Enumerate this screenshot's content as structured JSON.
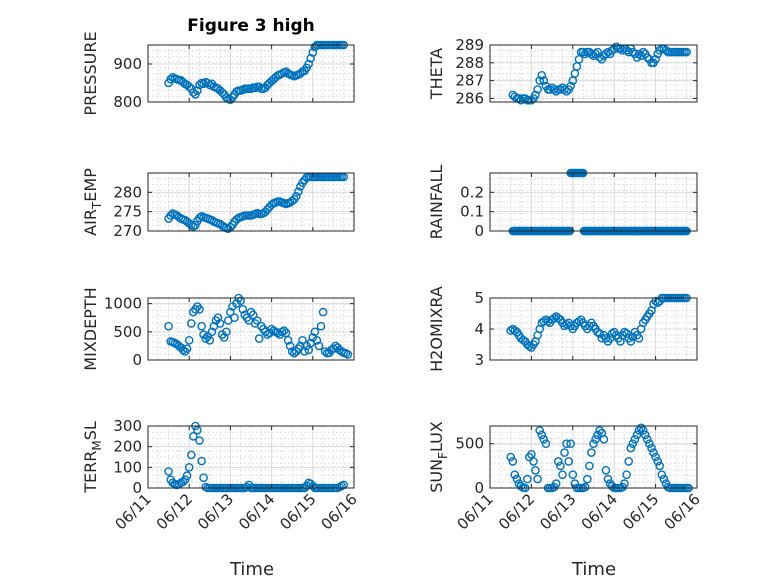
{
  "colors": {
    "marker": "#0072BD",
    "axes": "#262626",
    "background": "#ffffff"
  },
  "figure": {
    "title": "Figure 3 high"
  },
  "chart_data": [
    {
      "type": "scatter",
      "ylabel": "PRESSURE",
      "title": "Figure 3 high",
      "xlim": [
        0,
        5
      ],
      "ylim": [
        800,
        950
      ],
      "yticks": [
        800,
        900
      ],
      "ytick_labels": [
        "800",
        "900"
      ],
      "x": [
        0.5,
        0.55,
        0.6,
        0.65,
        0.7,
        0.75,
        0.8,
        0.85,
        0.9,
        0.95,
        1.0,
        1.05,
        1.1,
        1.15,
        1.2,
        1.25,
        1.3,
        1.35,
        1.4,
        1.45,
        1.5,
        1.55,
        1.6,
        1.65,
        1.7,
        1.75,
        1.8,
        1.85,
        1.9,
        1.95,
        2.0,
        2.05,
        2.1,
        2.15,
        2.2,
        2.25,
        2.3,
        2.35,
        2.4,
        2.45,
        2.5,
        2.55,
        2.6,
        2.65,
        2.7,
        2.75,
        2.8,
        2.85,
        2.9,
        2.95,
        3.0,
        3.05,
        3.1,
        3.15,
        3.2,
        3.25,
        3.3,
        3.35,
        3.4,
        3.45,
        3.5,
        3.55,
        3.6,
        3.65,
        3.7,
        3.75,
        3.8,
        3.85,
        3.9,
        3.95,
        4.0,
        4.05,
        4.1,
        4.15,
        4.2,
        4.25,
        4.3,
        4.35,
        4.4,
        4.45,
        4.5,
        4.55,
        4.6,
        4.65,
        4.7,
        4.75
      ],
      "y": [
        850,
        860,
        865,
        862,
        860,
        858,
        857,
        852,
        848,
        845,
        840,
        835,
        825,
        820,
        830,
        845,
        850,
        848,
        852,
        850,
        845,
        848,
        840,
        838,
        835,
        830,
        825,
        820,
        812,
        808,
        806,
        812,
        820,
        828,
        830,
        830,
        832,
        835,
        835,
        835,
        835,
        838,
        837,
        840,
        840,
        835,
        835,
        838,
        845,
        850,
        855,
        860,
        865,
        870,
        872,
        875,
        878,
        880,
        875,
        872,
        870,
        868,
        870,
        872,
        875,
        880,
        882,
        890,
        900,
        915,
        930,
        945,
        955,
        955,
        955,
        955,
        955,
        955,
        955,
        955,
        955,
        955,
        955,
        955,
        955,
        955
      ]
    },
    {
      "type": "scatter",
      "ylabel": "THETA",
      "xlim": [
        0,
        5
      ],
      "ylim": [
        285.8,
        289
      ],
      "yticks": [
        286,
        287,
        288,
        289
      ],
      "ytick_labels": [
        "286",
        "287",
        "288",
        "289"
      ],
      "x": [
        0.55,
        0.6,
        0.65,
        0.7,
        0.75,
        0.8,
        0.85,
        0.9,
        0.95,
        1.0,
        1.05,
        1.1,
        1.15,
        1.2,
        1.25,
        1.3,
        1.35,
        1.4,
        1.45,
        1.5,
        1.55,
        1.6,
        1.65,
        1.7,
        1.75,
        1.8,
        1.85,
        1.9,
        1.95,
        2.0,
        2.05,
        2.1,
        2.15,
        2.2,
        2.25,
        2.3,
        2.35,
        2.4,
        2.45,
        2.5,
        2.55,
        2.6,
        2.65,
        2.7,
        2.75,
        2.8,
        2.85,
        2.9,
        2.95,
        3.0,
        3.05,
        3.1,
        3.15,
        3.2,
        3.25,
        3.3,
        3.35,
        3.4,
        3.45,
        3.5,
        3.55,
        3.6,
        3.65,
        3.7,
        3.75,
        3.8,
        3.85,
        3.9,
        3.95,
        4.0,
        4.05,
        4.1,
        4.15,
        4.2,
        4.25,
        4.3,
        4.35,
        4.4,
        4.45,
        4.5,
        4.55,
        4.6,
        4.65,
        4.7,
        4.75
      ],
      "y": [
        286.2,
        286.1,
        286.0,
        286.0,
        285.9,
        286.0,
        286.0,
        285.9,
        285.9,
        285.9,
        286.0,
        286.2,
        286.5,
        287.0,
        287.3,
        287.0,
        286.7,
        286.5,
        286.5,
        286.6,
        286.5,
        286.4,
        286.5,
        286.5,
        286.6,
        286.5,
        286.4,
        286.5,
        286.7,
        287.0,
        287.4,
        287.8,
        288.2,
        288.6,
        288.6,
        288.5,
        288.6,
        288.6,
        288.5,
        288.4,
        288.5,
        288.6,
        288.3,
        288.2,
        288.4,
        288.5,
        288.6,
        288.5,
        288.7,
        288.8,
        288.9,
        288.8,
        288.8,
        288.7,
        288.8,
        288.7,
        288.6,
        288.8,
        288.6,
        288.5,
        288.3,
        288.5,
        288.4,
        288.6,
        288.5,
        288.3,
        288.2,
        288.0,
        288.0,
        288.2,
        288.5,
        288.7,
        288.8,
        288.8,
        288.7,
        288.6,
        288.6,
        288.6,
        288.6,
        288.6,
        288.6,
        288.6,
        288.6,
        288.6,
        288.6
      ]
    },
    {
      "type": "scatter",
      "ylabel": "AIR_TEMP",
      "ylabel_parts": [
        "AIR",
        "T",
        "EMP"
      ],
      "xlim": [
        0,
        5
      ],
      "ylim": [
        270,
        285
      ],
      "yticks": [
        270,
        275,
        280
      ],
      "ytick_labels": [
        "270",
        "275",
        "280"
      ],
      "x": [
        0.5,
        0.55,
        0.6,
        0.65,
        0.7,
        0.75,
        0.8,
        0.85,
        0.9,
        0.95,
        1.0,
        1.05,
        1.1,
        1.15,
        1.2,
        1.25,
        1.3,
        1.35,
        1.4,
        1.45,
        1.5,
        1.55,
        1.6,
        1.65,
        1.7,
        1.75,
        1.8,
        1.85,
        1.9,
        1.95,
        2.0,
        2.05,
        2.1,
        2.15,
        2.2,
        2.25,
        2.3,
        2.35,
        2.4,
        2.45,
        2.5,
        2.55,
        2.6,
        2.65,
        2.7,
        2.75,
        2.8,
        2.85,
        2.9,
        2.95,
        3.0,
        3.05,
        3.1,
        3.15,
        3.2,
        3.25,
        3.3,
        3.35,
        3.4,
        3.45,
        3.5,
        3.55,
        3.6,
        3.65,
        3.7,
        3.75,
        3.8,
        3.85,
        3.9,
        3.95,
        4.0,
        4.05,
        4.1,
        4.15,
        4.2,
        4.25,
        4.3,
        4.35,
        4.4,
        4.45,
        4.5,
        4.55,
        4.6,
        4.65,
        4.7,
        4.75
      ],
      "y": [
        273.2,
        274.0,
        274.5,
        274.3,
        274.0,
        273.6,
        273.2,
        273.0,
        272.8,
        272.4,
        272.0,
        271.6,
        271.2,
        271.5,
        272.6,
        273.4,
        273.8,
        273.6,
        273.4,
        273.2,
        273.0,
        272.8,
        272.4,
        272.2,
        272.0,
        271.8,
        271.4,
        271.0,
        270.8,
        270.6,
        271.0,
        271.6,
        272.4,
        273.0,
        273.4,
        273.6,
        273.8,
        274.0,
        274.0,
        274.0,
        274.0,
        274.2,
        274.4,
        274.6,
        274.4,
        274.4,
        274.6,
        275.0,
        275.6,
        276.2,
        276.8,
        277.2,
        277.4,
        277.6,
        277.6,
        277.4,
        277.2,
        277.0,
        277.2,
        277.4,
        277.8,
        278.2,
        279.0,
        280.2,
        281.5,
        282.5,
        283.2,
        283.8,
        284.0,
        284.0,
        284.0,
        284.0,
        284.0,
        284.0,
        284.0,
        284.0,
        284.0,
        284.0,
        284.0,
        284.0,
        284.0,
        284.0,
        284.0,
        284.0,
        284.0,
        284.0
      ]
    },
    {
      "type": "scatter",
      "ylabel": "RAINFALL",
      "xlim": [
        0,
        5
      ],
      "ylim": [
        0,
        0.3
      ],
      "yticks": [
        0,
        0.1,
        0.2
      ],
      "ytick_labels": [
        "0",
        "0.1",
        "0.2"
      ],
      "zero_range": [
        0.55,
        4.75
      ],
      "zero_step": 0.02,
      "rain_x": [
        1.95,
        1.98,
        2.01,
        2.04,
        2.07,
        2.1,
        2.13,
        2.16,
        2.19,
        2.22,
        2.25
      ],
      "rain_y": 0.3,
      "x_min_nonzero": 1.95
    },
    {
      "type": "scatter",
      "ylabel": "MIXDEPTH",
      "xlim": [
        0,
        5
      ],
      "ylim": [
        0,
        1100
      ],
      "yticks": [
        0,
        500,
        1000
      ],
      "ytick_labels": [
        "0",
        "500",
        "1000"
      ],
      "x": [
        0.5,
        0.55,
        0.6,
        0.65,
        0.7,
        0.75,
        0.8,
        0.85,
        0.9,
        0.95,
        1.0,
        1.05,
        1.1,
        1.15,
        1.2,
        1.25,
        1.3,
        1.35,
        1.4,
        1.45,
        1.5,
        1.55,
        1.6,
        1.65,
        1.7,
        1.75,
        1.8,
        1.85,
        1.9,
        1.95,
        2.0,
        2.05,
        2.1,
        2.15,
        2.2,
        2.25,
        2.3,
        2.35,
        2.4,
        2.45,
        2.5,
        2.55,
        2.6,
        2.65,
        2.7,
        2.75,
        2.8,
        2.85,
        2.9,
        2.95,
        3.0,
        3.05,
        3.1,
        3.15,
        3.2,
        3.25,
        3.3,
        3.35,
        3.4,
        3.45,
        3.5,
        3.55,
        3.6,
        3.65,
        3.7,
        3.75,
        3.8,
        3.85,
        3.9,
        3.95,
        4.0,
        4.05,
        4.1,
        4.15,
        4.2,
        4.25,
        4.3,
        4.35,
        4.4,
        4.45,
        4.5,
        4.55,
        4.6,
        4.65,
        4.7,
        4.75,
        4.8,
        4.85
      ],
      "y": [
        600,
        330,
        320,
        300,
        280,
        250,
        220,
        180,
        150,
        200,
        350,
        650,
        850,
        900,
        950,
        900,
        600,
        450,
        380,
        420,
        350,
        500,
        600,
        700,
        750,
        650,
        450,
        400,
        500,
        700,
        850,
        950,
        750,
        1000,
        1150,
        1050,
        900,
        800,
        750,
        700,
        850,
        800,
        650,
        700,
        380,
        600,
        550,
        500,
        450,
        480,
        550,
        520,
        500,
        480,
        450,
        500,
        520,
        480,
        350,
        250,
        150,
        120,
        150,
        200,
        250,
        350,
        150,
        250,
        180,
        300,
        400,
        500,
        350,
        250,
        600,
        850,
        150,
        120,
        130,
        180,
        200,
        250,
        220,
        180,
        150,
        130,
        120,
        100
      ]
    },
    {
      "type": "scatter",
      "ylabel": "H2OMIXRA",
      "xlim": [
        0,
        5
      ],
      "ylim": [
        3,
        5
      ],
      "yticks": [
        3,
        4,
        5
      ],
      "ytick_labels": [
        "3",
        "4",
        "5"
      ],
      "x": [
        0.5,
        0.55,
        0.6,
        0.65,
        0.7,
        0.75,
        0.8,
        0.85,
        0.9,
        0.95,
        1.0,
        1.05,
        1.1,
        1.15,
        1.2,
        1.25,
        1.3,
        1.35,
        1.4,
        1.45,
        1.5,
        1.55,
        1.6,
        1.65,
        1.7,
        1.75,
        1.8,
        1.85,
        1.9,
        1.95,
        2.0,
        2.05,
        2.1,
        2.15,
        2.2,
        2.25,
        2.3,
        2.35,
        2.4,
        2.45,
        2.5,
        2.55,
        2.6,
        2.65,
        2.7,
        2.75,
        2.8,
        2.85,
        2.9,
        2.95,
        3.0,
        3.05,
        3.1,
        3.15,
        3.2,
        3.25,
        3.3,
        3.35,
        3.4,
        3.45,
        3.5,
        3.55,
        3.6,
        3.65,
        3.7,
        3.75,
        3.8,
        3.85,
        3.9,
        3.95,
        4.0,
        4.05,
        4.1,
        4.15,
        4.2,
        4.25,
        4.3,
        4.35,
        4.4,
        4.45,
        4.5,
        4.55,
        4.6,
        4.65,
        4.7,
        4.75
      ],
      "y": [
        3.95,
        4.0,
        3.95,
        3.9,
        3.8,
        3.7,
        3.65,
        3.6,
        3.5,
        3.45,
        3.4,
        3.5,
        3.6,
        3.8,
        4.0,
        4.2,
        4.25,
        4.3,
        4.25,
        4.2,
        4.3,
        4.35,
        4.4,
        4.35,
        4.3,
        4.2,
        4.1,
        4.15,
        4.2,
        4.1,
        4.0,
        4.1,
        4.2,
        4.25,
        4.3,
        4.2,
        4.1,
        4.0,
        4.1,
        4.2,
        4.1,
        4.0,
        3.9,
        3.85,
        3.7,
        3.8,
        3.7,
        3.6,
        3.7,
        3.85,
        3.9,
        3.8,
        3.7,
        3.6,
        3.8,
        3.9,
        3.85,
        3.7,
        3.6,
        3.75,
        3.9,
        3.8,
        3.7,
        4.0,
        4.2,
        4.3,
        4.4,
        4.5,
        4.6,
        4.8,
        4.9,
        4.85,
        4.9,
        5.0,
        5.0,
        5.0,
        5.0,
        5.0,
        5.0,
        5.0,
        5.0,
        5.0,
        5.0,
        5.0,
        5.0,
        5.0
      ]
    },
    {
      "type": "scatter",
      "ylabel": "TERR_MSL",
      "ylabel_parts": [
        "TERR",
        "M",
        "SL"
      ],
      "xlim": [
        0,
        5
      ],
      "ylim": [
        0,
        300
      ],
      "yticks": [
        0,
        100,
        200,
        300
      ],
      "ytick_labels": [
        "0",
        "100",
        "200",
        "300"
      ],
      "x": [
        0.5,
        0.55,
        0.6,
        0.65,
        0.7,
        0.75,
        0.8,
        0.85,
        0.9,
        0.95,
        1.0,
        1.05,
        1.1,
        1.15,
        1.2,
        1.25,
        1.3,
        1.35,
        1.4,
        1.45,
        1.5,
        1.55,
        1.6,
        1.65,
        1.7,
        1.75,
        1.8,
        1.85,
        1.9,
        1.95,
        2.0,
        2.05,
        2.1,
        2.15,
        2.2,
        2.25,
        2.3,
        2.35,
        2.4,
        2.45,
        2.5,
        2.55,
        2.6,
        2.65,
        2.7,
        2.75,
        2.8,
        2.85,
        2.9,
        2.95,
        3.0,
        3.05,
        3.1,
        3.15,
        3.2,
        3.25,
        3.3,
        3.35,
        3.4,
        3.45,
        3.5,
        3.55,
        3.6,
        3.65,
        3.7,
        3.75,
        3.8,
        3.85,
        3.9,
        3.95,
        4.0,
        4.05,
        4.1,
        4.15,
        4.2,
        4.25,
        4.3,
        4.35,
        4.4,
        4.45,
        4.5,
        4.55,
        4.6,
        4.65,
        4.7,
        4.75
      ],
      "y": [
        80,
        40,
        25,
        20,
        15,
        18,
        25,
        30,
        40,
        60,
        100,
        160,
        250,
        300,
        280,
        230,
        130,
        50,
        5,
        0,
        0,
        0,
        0,
        0,
        0,
        0,
        0,
        0,
        0,
        0,
        0,
        0,
        0,
        0,
        0,
        0,
        0,
        0,
        5,
        15,
        0,
        0,
        0,
        0,
        0,
        0,
        0,
        0,
        0,
        0,
        0,
        0,
        0,
        0,
        0,
        0,
        0,
        0,
        0,
        0,
        0,
        0,
        0,
        0,
        0,
        0,
        0,
        10,
        25,
        20,
        10,
        0,
        0,
        0,
        0,
        0,
        0,
        0,
        0,
        0,
        0,
        0,
        0,
        5,
        10,
        15
      ]
    },
    {
      "type": "scatter",
      "ylabel": "SUN_FLUX",
      "ylabel_parts": [
        "SUN",
        "F",
        "LUX"
      ],
      "xlim": [
        0,
        5
      ],
      "ylim": [
        0,
        700
      ],
      "yticks": [
        0,
        500
      ],
      "ytick_labels": [
        "0",
        "500"
      ],
      "x": [
        0.5,
        0.55,
        0.6,
        0.65,
        0.7,
        0.75,
        0.8,
        0.85,
        0.9,
        0.95,
        1.0,
        1.05,
        1.1,
        1.15,
        1.2,
        1.25,
        1.3,
        1.35,
        1.4,
        1.45,
        1.5,
        1.55,
        1.6,
        1.65,
        1.7,
        1.75,
        1.8,
        1.85,
        1.9,
        1.95,
        2.0,
        2.05,
        2.1,
        2.15,
        2.2,
        2.25,
        2.3,
        2.35,
        2.4,
        2.45,
        2.5,
        2.55,
        2.6,
        2.65,
        2.7,
        2.75,
        2.8,
        2.85,
        2.9,
        2.95,
        3.0,
        3.05,
        3.1,
        3.15,
        3.2,
        3.25,
        3.3,
        3.35,
        3.4,
        3.45,
        3.5,
        3.55,
        3.6,
        3.65,
        3.7,
        3.75,
        3.8,
        3.85,
        3.9,
        3.95,
        4.0,
        4.05,
        4.1,
        4.15,
        4.2,
        4.25,
        4.3,
        4.35,
        4.4,
        4.45,
        4.5,
        4.55,
        4.6,
        4.65,
        4.7,
        4.75,
        4.8
      ],
      "y": [
        350,
        300,
        150,
        100,
        50,
        20,
        5,
        0,
        100,
        350,
        380,
        300,
        200,
        100,
        650,
        600,
        550,
        500,
        0,
        0,
        0,
        10,
        50,
        300,
        250,
        150,
        400,
        500,
        300,
        500,
        150,
        50,
        0,
        0,
        0,
        0,
        10,
        100,
        250,
        400,
        500,
        550,
        600,
        650,
        620,
        550,
        200,
        100,
        50,
        20,
        0,
        0,
        0,
        0,
        10,
        50,
        150,
        300,
        450,
        500,
        550,
        600,
        650,
        680,
        650,
        600,
        550,
        500,
        450,
        400,
        350,
        300,
        250,
        150,
        100,
        50,
        10,
        0,
        0,
        0,
        0,
        0,
        0,
        0,
        0,
        0,
        0
      ]
    }
  ],
  "x_axis": {
    "label": "Time",
    "tick_labels": [
      "06/11",
      "06/12",
      "06/13",
      "06/14",
      "06/15",
      "06/16"
    ],
    "tick_values": [
      0,
      1,
      2,
      3,
      4,
      5
    ]
  }
}
